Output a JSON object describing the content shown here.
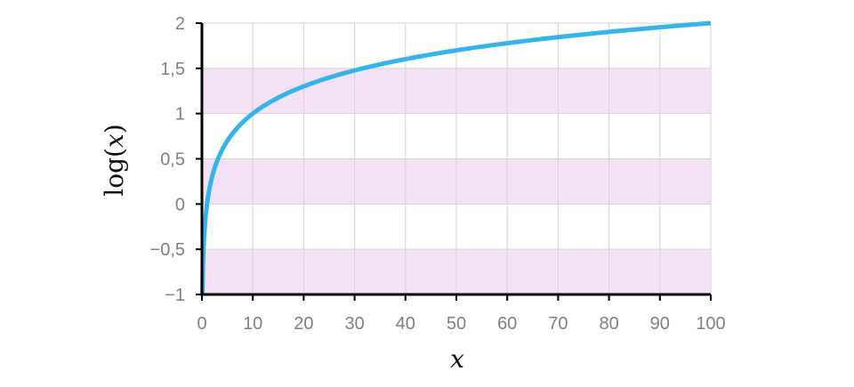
{
  "chart_data": {
    "type": "line",
    "xlabel": "x",
    "ylabel_func": "log",
    "ylabel_var": "x",
    "xlim": [
      0,
      100
    ],
    "ylim": [
      -1,
      2
    ],
    "grid": true,
    "x_ticks": [
      0,
      10,
      20,
      30,
      40,
      50,
      60,
      70,
      80,
      90,
      100
    ],
    "x_tick_labels": [
      "0",
      "10",
      "20",
      "30",
      "40",
      "50",
      "60",
      "70",
      "80",
      "90",
      "100"
    ],
    "y_ticks": [
      -1,
      -0.5,
      0,
      0.5,
      1,
      1.5,
      2
    ],
    "y_tick_labels": [
      "−1",
      "−0,5",
      "0",
      "0,5",
      "1",
      "1,5",
      "2"
    ],
    "bands": [
      {
        "y0": -1,
        "y1": -0.5
      },
      {
        "y0": 0,
        "y1": 0.5
      },
      {
        "y0": 1,
        "y1": 1.5
      }
    ],
    "band_color": "#f5e1f5",
    "series": [
      {
        "function": "log10",
        "x": [
          0.1,
          0.2,
          0.3,
          0.5,
          0.75,
          1,
          1.5,
          2,
          3,
          4,
          5,
          7,
          10,
          15,
          20,
          30,
          40,
          50,
          60,
          70,
          80,
          90,
          100
        ],
        "y": [
          -1,
          -0.699,
          -0.523,
          -0.301,
          -0.125,
          0,
          0.176,
          0.301,
          0.477,
          0.602,
          0.699,
          0.845,
          1,
          1.176,
          1.301,
          1.477,
          1.602,
          1.699,
          1.778,
          1.845,
          1.903,
          1.954,
          2
        ],
        "color": "#35b4ea"
      }
    ],
    "axis_color": "#000000",
    "grid_color": "#d3d3d3",
    "tick_label_color": "#808080"
  }
}
